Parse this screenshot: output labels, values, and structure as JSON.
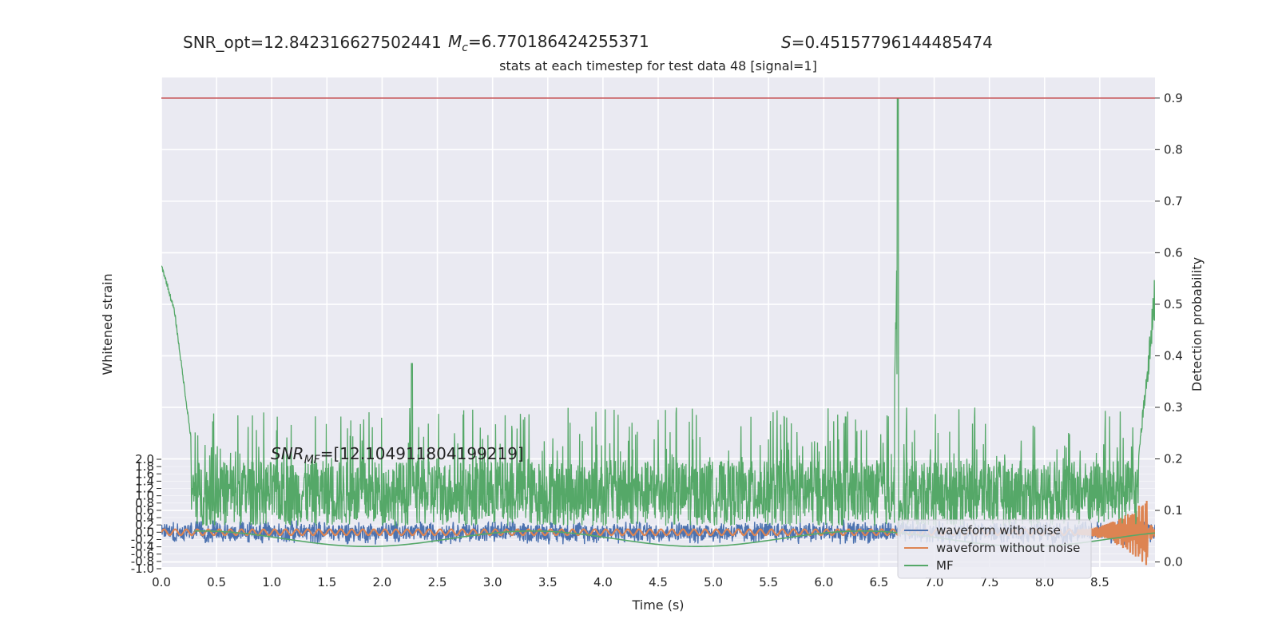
{
  "chart_data": {
    "type": "line",
    "title": "stats at each timestep for test data 48 [signal=1]",
    "header": {
      "snr_opt": "SNR_opt=12.842316627502441",
      "mc_symbol": "M",
      "mc_sub": "c",
      "mc_value": "=6.770186424255371",
      "s_symbol": "S",
      "s_value": "=0.45157796144485474"
    },
    "annotation": {
      "symbol": "SNR",
      "sub": "MF",
      "value": "=[12.104911804199219]"
    },
    "xlabel": "Time (s)",
    "ylabel_left": "Whitened strain",
    "ylabel_right": "Detection probability",
    "xlim": [
      0,
      9.0
    ],
    "x_ticks": [
      "0.0",
      "0.5",
      "1.0",
      "1.5",
      "2.0",
      "2.5",
      "3.0",
      "3.5",
      "4.0",
      "4.5",
      "5.0",
      "5.5",
      "6.0",
      "6.5",
      "7.0",
      "7.5",
      "8.0",
      "8.5"
    ],
    "y_right_lim": [
      -0.01,
      0.94
    ],
    "y_right_ticks": [
      "0.0",
      "0.1",
      "0.2",
      "0.3",
      "0.4",
      "0.5",
      "0.6",
      "0.7",
      "0.8",
      "0.9"
    ],
    "y_left_lim": [
      -1.0,
      2.0
    ],
    "y_left_ticks": [
      "-1.0",
      "-0.8",
      "-0.6",
      "-0.4",
      "-0.2",
      "0.0",
      "0.2",
      "0.4",
      "0.6",
      "0.8",
      "1.0",
      "1.2",
      "1.4",
      "1.6",
      "1.8",
      "2.0"
    ],
    "threshold": {
      "value": 0.9,
      "color": "#c44e52"
    },
    "grid": true,
    "legend_position": "lower-right",
    "series": [
      {
        "name": "waveform with noise",
        "color": "#4c72b0",
        "axis": "left",
        "description_values": {
          "center": 0.0,
          "amplitude": 0.35
        }
      },
      {
        "name": "waveform without noise",
        "color": "#dd8452",
        "axis": "left",
        "description_values": {
          "center": 0.0,
          "amplitude": 0.08,
          "chirp_end_amplitude": 0.9
        }
      },
      {
        "name": "MF",
        "color": "#55a868",
        "axis": "right",
        "peaks": [
          {
            "x": 0.0,
            "y": 0.575
          },
          {
            "x": 0.05,
            "y": 0.54
          },
          {
            "x": 0.12,
            "y": 0.485
          },
          {
            "x": 0.25,
            "y": 0.27
          },
          {
            "x": 2.27,
            "y": 0.385
          },
          {
            "x": 6.67,
            "y": 0.9
          },
          {
            "x": 8.95,
            "y": 0.45
          }
        ],
        "noise_band": [
          0.07,
          0.3
        ],
        "baseline_curve_range": [
          0.03,
          0.06
        ]
      }
    ],
    "colors": {
      "background": "#eaeaf2",
      "grid": "#ffffff"
    }
  }
}
